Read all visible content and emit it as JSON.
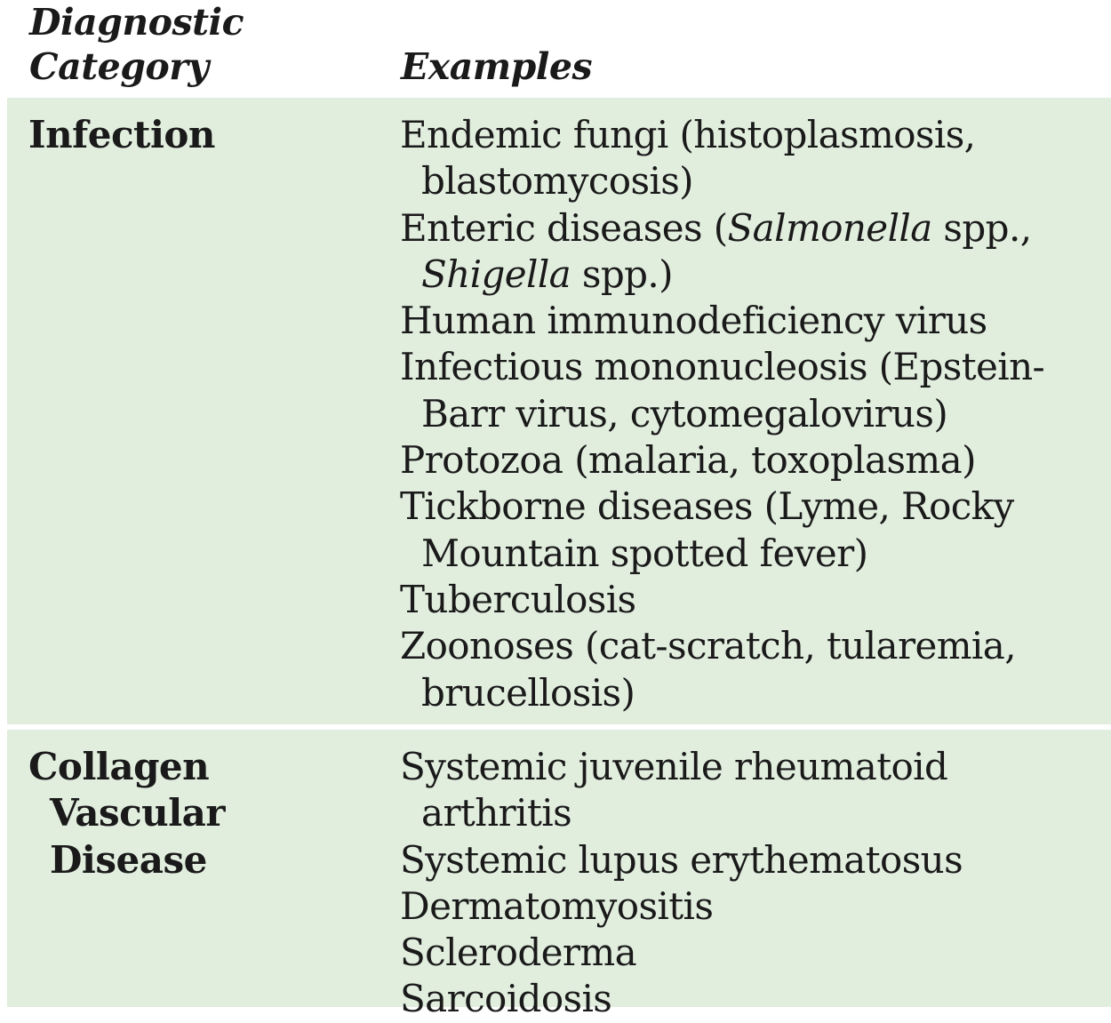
{
  "table": {
    "headers": {
      "category_line1": "Diagnostic",
      "category_line2": "Category",
      "examples": "Examples"
    },
    "sections": [
      {
        "category_lines": [
          "Infection"
        ],
        "examples": [
          {
            "lines": [
              "Endemic fungi (histoplasmosis,",
              "blastomycosis)"
            ]
          },
          {
            "segments": {
              "a": "Enteric diseases (",
              "b": "Salmonella",
              "c": " spp.,",
              "d": "Shigella",
              "e": " spp.)"
            }
          },
          {
            "lines": [
              "Human immunodeficiency virus"
            ]
          },
          {
            "lines": [
              "Infectious mononucleosis (Epstein-",
              "Barr virus, cytomegalovirus)"
            ]
          },
          {
            "lines": [
              "Protozoa (malaria, toxoplasma)"
            ]
          },
          {
            "lines": [
              "Tickborne diseases (Lyme, Rocky",
              "Mountain spotted fever)"
            ]
          },
          {
            "lines": [
              "Tuberculosis"
            ]
          },
          {
            "lines": [
              "Zoonoses (cat-scratch, tularemia,",
              "brucellosis)"
            ]
          }
        ]
      },
      {
        "category_lines": [
          "Collagen",
          "Vascular",
          "Disease"
        ],
        "examples": [
          {
            "lines": [
              "Systemic juvenile rheumatoid",
              "arthritis"
            ]
          },
          {
            "lines": [
              "Systemic lupus erythematosus"
            ]
          },
          {
            "lines": [
              "Dermatomyositis"
            ]
          },
          {
            "lines": [
              "Scleroderma"
            ]
          },
          {
            "lines": [
              "Sarcoidosis"
            ]
          }
        ]
      }
    ]
  }
}
